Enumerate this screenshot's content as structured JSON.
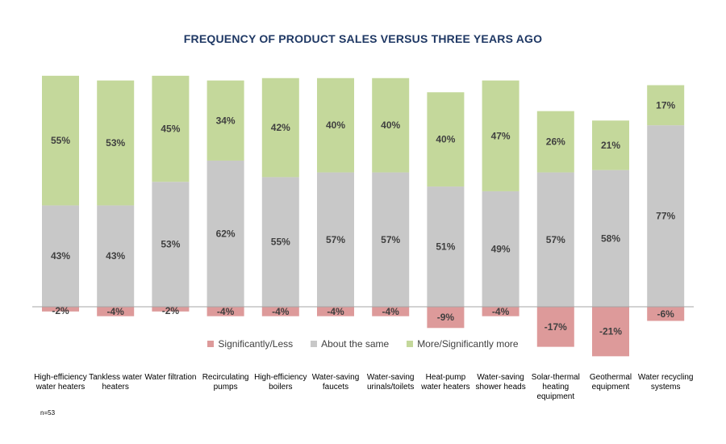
{
  "chart_data": {
    "type": "bar",
    "stacked": true,
    "title": "FREQUENCY OF PRODUCT SALES VERSUS THREE YEARS AGO",
    "categories": [
      "High-efficiency water heaters",
      "Tankless water heaters",
      "Water filtration",
      "Recirculating pumps",
      "High-efficiency boilers",
      "Water-saving faucets",
      "Water-saving urinals/toilets",
      "Heat-pump water heaters",
      "Water-saving shower heads",
      "Solar-thermal heating equipment",
      "Geothermal equipment",
      "Water recycling systems"
    ],
    "series": [
      {
        "name": "Significantly/Less",
        "color": "#dd9a9a",
        "values": [
          -2,
          -4,
          -2,
          -4,
          -4,
          -4,
          -4,
          -9,
          -4,
          -17,
          -21,
          -6
        ]
      },
      {
        "name": "About the same",
        "color": "#c8c8c8",
        "values": [
          43,
          43,
          53,
          62,
          55,
          57,
          57,
          51,
          49,
          57,
          58,
          77
        ]
      },
      {
        "name": "More/Significantly more",
        "color": "#c4d89b",
        "values": [
          55,
          53,
          45,
          34,
          42,
          40,
          40,
          40,
          47,
          26,
          21,
          17
        ]
      }
    ],
    "unit": "%",
    "grid": false,
    "legend_position": "bottom",
    "note": "n=53"
  }
}
